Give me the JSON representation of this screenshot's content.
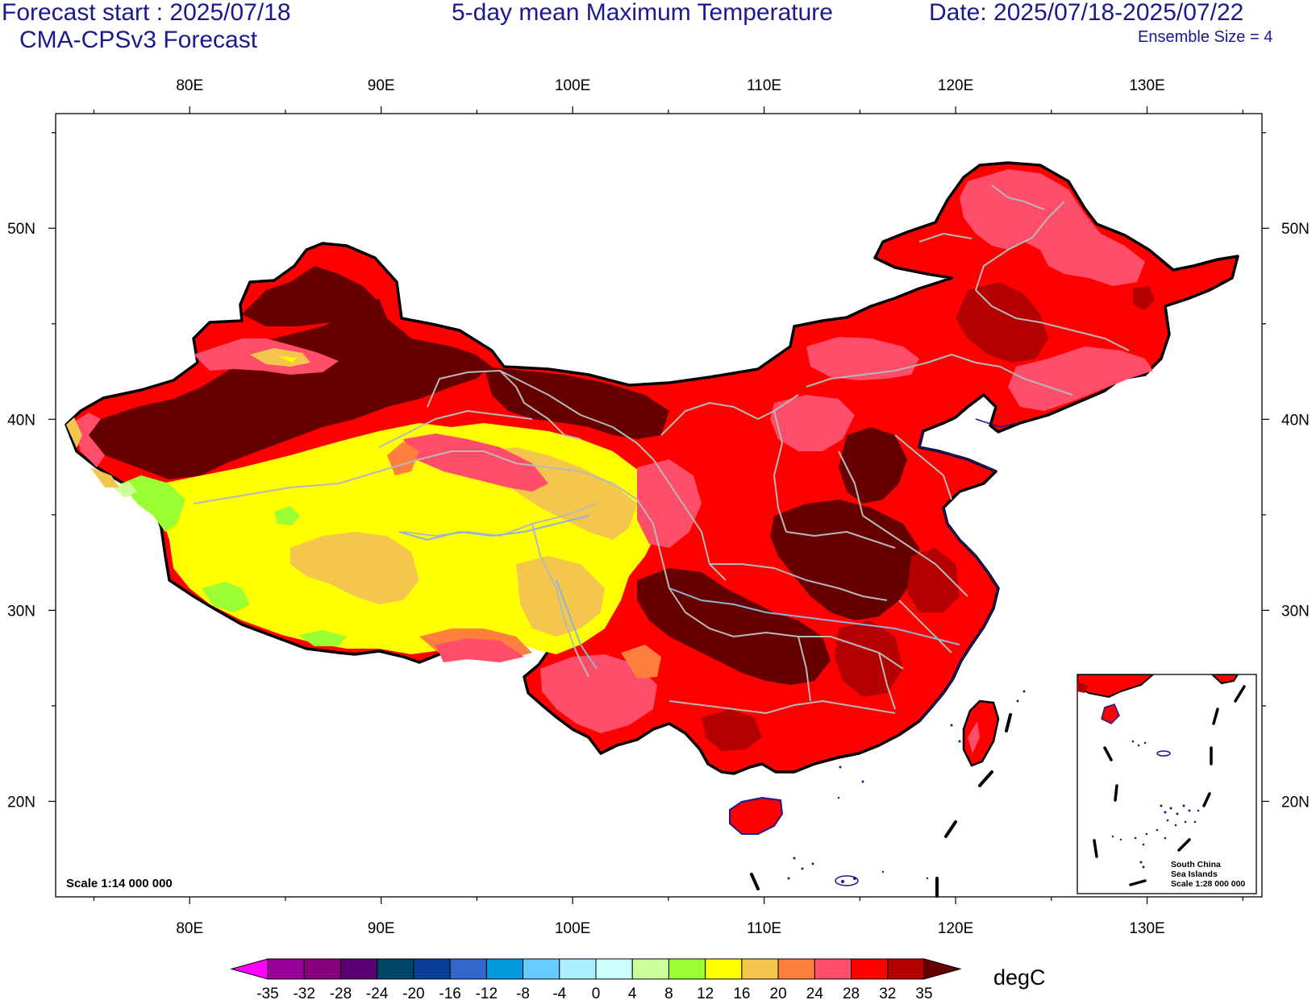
{
  "header": {
    "forecast_start": "Forecast start : 2025/07/18",
    "model": "CMA-CPSv3 Forecast",
    "title": "5-day mean Maximum Temperature",
    "date_range": "Date: 2025/07/18-2025/07/22",
    "ensemble": "Ensemble Size = 4"
  },
  "map": {
    "lon_range": [
      73,
      136
    ],
    "lat_range": [
      15,
      56
    ],
    "lon_ticks": [
      {
        "value": 80,
        "label": "80E"
      },
      {
        "value": 90,
        "label": "90E"
      },
      {
        "value": 100,
        "label": "100E"
      },
      {
        "value": 110,
        "label": "110E"
      },
      {
        "value": 120,
        "label": "120E"
      },
      {
        "value": 130,
        "label": "130E"
      }
    ],
    "lat_ticks": [
      {
        "value": 20,
        "label": "20N"
      },
      {
        "value": 30,
        "label": "30N"
      },
      {
        "value": 40,
        "label": "40N"
      },
      {
        "value": 50,
        "label": "50N"
      }
    ],
    "scale_note": "Scale 1:14 000 000",
    "inset": {
      "line1": "South China",
      "line2": "Sea Islands",
      "line3": "Scale 1:28 000 000"
    }
  },
  "colorbar": {
    "unit": "degC",
    "labels": [
      "-35",
      "-32",
      "-28",
      "-24",
      "-20",
      "-16",
      "-12",
      "-8",
      "-4",
      "0",
      "4",
      "8",
      "12",
      "16",
      "20",
      "24",
      "28",
      "32",
      "35"
    ],
    "colors": [
      "#ff00ff",
      "#990099",
      "#88007f",
      "#5a0072",
      "#004466",
      "#0a3e99",
      "#3366cc",
      "#0099dd",
      "#66ccff",
      "#aaeeff",
      "#ccffff",
      "#ccff99",
      "#99ff33",
      "#ffff00",
      "#f5c64e",
      "#ff7f3f",
      "#ff4d6a",
      "#ff0000",
      "#b30000",
      "#660000"
    ]
  },
  "legend_colors": {
    "very_hot": "#660000",
    "hot": "#a50000",
    "warm_red": "#ff0000",
    "pink": "#ff4d6a",
    "orange": "#ff7f3f",
    "tan": "#f5c64e",
    "yellow": "#ffff00",
    "green": "#99ff33"
  }
}
